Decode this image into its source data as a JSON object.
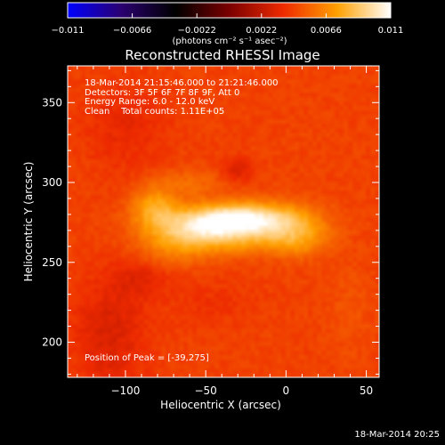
{
  "chart_data": {
    "type": "heatmap",
    "title": "Reconstructed RHESSI Image",
    "xlabel": "Heliocentric X (arcsec)",
    "ylabel": "Heliocentric Y (arcsec)",
    "xlim": [
      -136,
      58
    ],
    "ylim": [
      178,
      373
    ],
    "x_ticks": [
      -100,
      -50,
      0,
      50
    ],
    "x_tick_labels": [
      "−100",
      "−50",
      "0",
      "50"
    ],
    "y_ticks": [
      200,
      250,
      300,
      350
    ],
    "y_tick_labels": [
      "200",
      "250",
      "300",
      "350"
    ],
    "colorbar": {
      "range": [
        -0.011,
        0.011
      ],
      "ticks": [
        -0.011,
        -0.0066,
        -0.0022,
        0.0022,
        0.0066,
        0.011
      ],
      "tick_labels": [
        "−0.011",
        "−0.0066",
        "−0.0022",
        "0.0022",
        "0.0066",
        "0.011"
      ],
      "units": "(photons cm⁻² s⁻¹ asec⁻²)",
      "colors": [
        "#0000ff",
        "#2a0070",
        "#000000",
        "#7a0000",
        "#ee2a00",
        "#ffa000",
        "#ffffff"
      ]
    },
    "background_value": 0.0044,
    "sources": [
      {
        "x": -55,
        "y": 272,
        "sx": 22,
        "sy": 9,
        "amp": 0.0048
      },
      {
        "x": -32,
        "y": 277,
        "sx": 17,
        "sy": 7,
        "amp": 0.0042
      },
      {
        "x": -5,
        "y": 276,
        "sx": 19,
        "sy": 8,
        "amp": 0.0036
      },
      {
        "x": -82,
        "y": 285,
        "sx": 10,
        "sy": 9,
        "amp": 0.0028
      },
      {
        "x": 8,
        "y": 264,
        "sx": 14,
        "sy": 8,
        "amp": 0.0022
      },
      {
        "x": -70,
        "y": 258,
        "sx": 16,
        "sy": 8,
        "amp": 0.0014
      },
      {
        "x": -25,
        "y": 262,
        "sx": 20,
        "sy": 6,
        "amp": 0.0012
      },
      {
        "x": -60,
        "y": 300,
        "sx": 16,
        "sy": 6,
        "amp": 0.0012
      },
      {
        "x": -110,
        "y": 205,
        "sx": 16,
        "sy": 26,
        "amp": -0.0014
      },
      {
        "x": -100,
        "y": 335,
        "sx": 18,
        "sy": 20,
        "amp": -0.0009
      },
      {
        "x": -30,
        "y": 308,
        "sx": 7,
        "sy": 5,
        "amp": -0.0014
      },
      {
        "x": -90,
        "y": 240,
        "sx": 12,
        "sy": 8,
        "amp": -0.001
      },
      {
        "x": -45,
        "y": 225,
        "sx": 20,
        "sy": 10,
        "amp": -0.0005
      },
      {
        "x": 40,
        "y": 220,
        "sx": 10,
        "sy": 20,
        "amp": 0.0005
      }
    ]
  },
  "annotations": {
    "line1": "18-Mar-2014 21:15:46.000 to 21:21:46.000",
    "line2": "Detectors: 3F 5F 6F 7F 8F 9F, Att 0",
    "line3": "Energy Range: 6.0 - 12.0 keV",
    "line4": "Clean    Total counts: 1.11E+05",
    "peak": "Position of Peak = [-39,275]"
  },
  "footer": {
    "timestamp": "18-Mar-2014 20:25"
  },
  "colors": {
    "background": "#000000",
    "text": "#ffffff"
  }
}
